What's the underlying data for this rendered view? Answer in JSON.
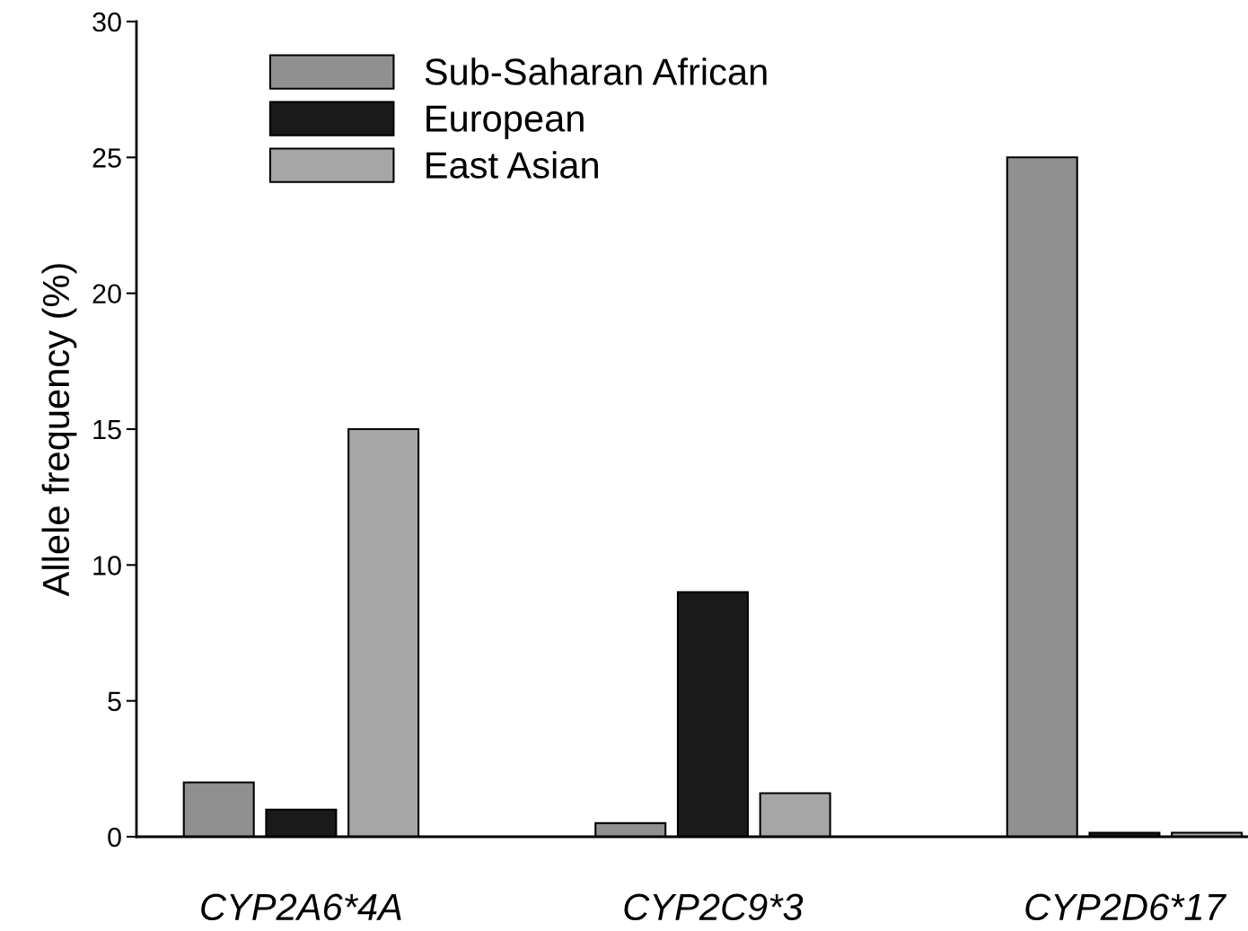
{
  "chart_data": {
    "type": "bar",
    "ylabel": "Allele frequency (%)",
    "categories": [
      "CYP2A6*4A",
      "CYP2C9*3",
      "CYP2D6*17"
    ],
    "series": [
      {
        "name": "Sub-Saharan African",
        "color": "#909090",
        "values": [
          2,
          0.5,
          25
        ]
      },
      {
        "name": "European",
        "color": "#1a1a1a",
        "values": [
          1,
          9,
          0.15
        ]
      },
      {
        "name": "East Asian",
        "color": "#a6a6a6",
        "values": [
          15,
          1.6,
          0.15
        ]
      }
    ],
    "ylim": [
      0,
      30
    ],
    "yticks": [
      0,
      5,
      10,
      15,
      20,
      25,
      30
    ],
    "grid": false,
    "legend": "top left"
  }
}
